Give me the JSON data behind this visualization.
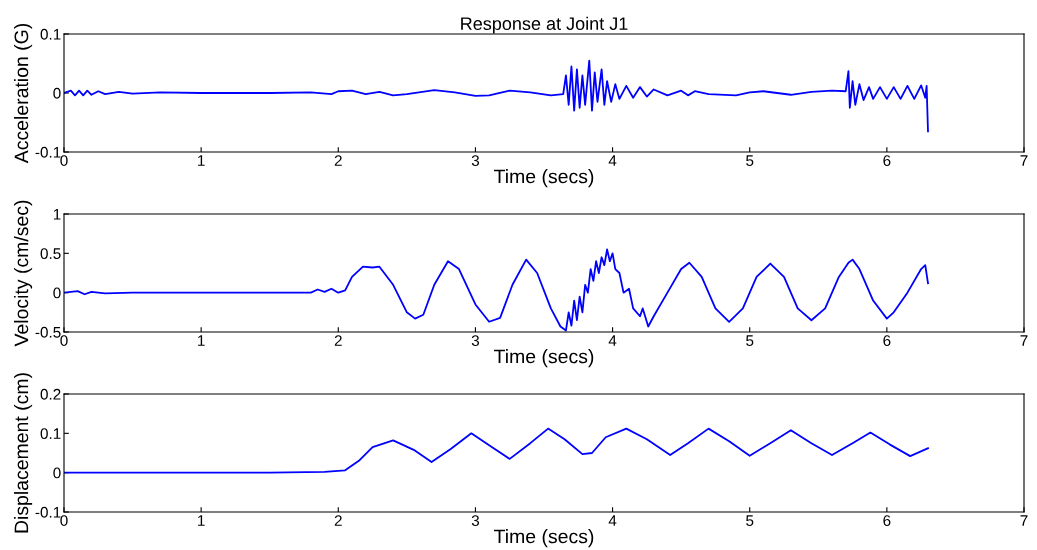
{
  "chart_data": [
    {
      "type": "line",
      "title": "Response at Joint J1",
      "xlabel": "Time (secs)",
      "ylabel": "Acceleration (G)",
      "xlim": [
        0,
        7
      ],
      "xticks": [
        0,
        1,
        2,
        3,
        4,
        5,
        6,
        7
      ],
      "ylim": [
        -0.1,
        0.1
      ],
      "yticks": [
        -0.1,
        0,
        0.1
      ],
      "grid": false,
      "legend": false,
      "series": [
        {
          "color": "#0000ff",
          "x": [
            0,
            0.05,
            0.08,
            0.11,
            0.14,
            0.17,
            0.2,
            0.25,
            0.3,
            0.4,
            0.5,
            0.7,
            1.0,
            1.5,
            1.8,
            1.95,
            2.0,
            2.1,
            2.2,
            2.3,
            2.4,
            2.5,
            2.7,
            2.85,
            3.0,
            3.1,
            3.25,
            3.4,
            3.55,
            3.64,
            3.66,
            3.68,
            3.7,
            3.72,
            3.74,
            3.76,
            3.78,
            3.8,
            3.83,
            3.85,
            3.87,
            3.89,
            3.92,
            3.94,
            3.96,
            3.99,
            4.02,
            4.05,
            4.1,
            4.15,
            4.2,
            4.25,
            4.3,
            4.4,
            4.5,
            4.55,
            4.6,
            4.7,
            4.9,
            5.0,
            5.1,
            5.3,
            5.45,
            5.6,
            5.7,
            5.72,
            5.73,
            5.75,
            5.77,
            5.8,
            5.83,
            5.87,
            5.9,
            5.95,
            6.0,
            6.05,
            6.1,
            6.15,
            6.2,
            6.25,
            6.28,
            6.29,
            6.3
          ],
          "values": [
            0,
            0.004,
            -0.004,
            0.004,
            -0.004,
            0.004,
            -0.003,
            0.003,
            -0.002,
            0.002,
            -0.001,
            0.001,
            0,
            0,
            0.001,
            -0.002,
            0.003,
            0.004,
            -0.002,
            0.002,
            -0.004,
            -0.002,
            0.005,
            0.001,
            -0.005,
            -0.004,
            0.004,
            0.001,
            -0.004,
            -0.002,
            0.03,
            -0.02,
            0.045,
            -0.03,
            0.04,
            -0.025,
            0.03,
            -0.02,
            0.055,
            -0.03,
            0.035,
            -0.015,
            0.04,
            -0.02,
            0.02,
            -0.015,
            0.015,
            -0.01,
            0.012,
            -0.008,
            0.01,
            -0.006,
            0.006,
            -0.004,
            0.004,
            -0.004,
            0.003,
            -0.002,
            -0.004,
            0.001,
            0.003,
            -0.003,
            0.002,
            0.004,
            0.003,
            0.037,
            -0.025,
            0.02,
            -0.02,
            0.015,
            -0.012,
            0.01,
            -0.01,
            0.01,
            -0.01,
            0.01,
            -0.01,
            0.012,
            -0.01,
            0.013,
            -0.008,
            0.012,
            -0.065
          ]
        }
      ]
    },
    {
      "type": "line",
      "xlabel": "Time (secs)",
      "ylabel": "Velocity (cm/sec)",
      "xlim": [
        0,
        7
      ],
      "xticks": [
        0,
        1,
        2,
        3,
        4,
        5,
        6,
        7
      ],
      "ylim": [
        -0.5,
        1
      ],
      "yticks": [
        -0.5,
        0,
        0.5,
        1
      ],
      "grid": false,
      "legend": false,
      "series": [
        {
          "color": "#0000ff",
          "x": [
            0,
            0.1,
            0.15,
            0.2,
            0.3,
            0.5,
            1.8,
            1.85,
            1.9,
            1.95,
            2.0,
            2.05,
            2.1,
            2.18,
            2.25,
            2.3,
            2.4,
            2.5,
            2.56,
            2.62,
            2.7,
            2.8,
            2.88,
            3.0,
            3.1,
            3.18,
            3.27,
            3.37,
            3.45,
            3.55,
            3.62,
            3.66,
            3.68,
            3.7,
            3.72,
            3.74,
            3.76,
            3.78,
            3.8,
            3.82,
            3.84,
            3.86,
            3.88,
            3.9,
            3.92,
            3.94,
            3.96,
            3.98,
            4.0,
            4.02,
            4.05,
            4.08,
            4.12,
            4.15,
            4.2,
            4.22,
            4.26,
            4.3,
            4.4,
            4.5,
            4.56,
            4.65,
            4.75,
            4.85,
            4.95,
            5.05,
            5.15,
            5.25,
            5.35,
            5.45,
            5.55,
            5.65,
            5.72,
            5.75,
            5.8,
            5.9,
            6.0,
            6.05,
            6.15,
            6.25,
            6.28,
            6.3
          ],
          "values": [
            0,
            0.02,
            -0.02,
            0.01,
            -0.01,
            0,
            0,
            0.04,
            0.01,
            0.05,
            0,
            0.03,
            0.2,
            0.33,
            0.32,
            0.33,
            0.1,
            -0.25,
            -0.33,
            -0.28,
            0.1,
            0.4,
            0.3,
            -0.15,
            -0.37,
            -0.32,
            0.1,
            0.42,
            0.25,
            -0.2,
            -0.43,
            -0.48,
            -0.25,
            -0.42,
            -0.1,
            -0.35,
            -0.05,
            -0.25,
            0.1,
            0,
            0.3,
            0.15,
            0.4,
            0.25,
            0.45,
            0.35,
            0.55,
            0.4,
            0.5,
            0.3,
            0.25,
            0,
            0.05,
            -0.2,
            -0.3,
            -0.2,
            -0.43,
            -0.3,
            0,
            0.3,
            0.38,
            0.2,
            -0.2,
            -0.37,
            -0.2,
            0.2,
            0.37,
            0.2,
            -0.2,
            -0.35,
            -0.2,
            0.2,
            0.38,
            0.42,
            0.3,
            -0.1,
            -0.33,
            -0.25,
            0,
            0.3,
            0.35,
            0.12
          ]
        }
      ]
    },
    {
      "type": "line",
      "xlabel": "Time (secs)",
      "ylabel": "Displacement (cm)",
      "xlim": [
        0,
        7
      ],
      "xticks": [
        0,
        1,
        2,
        3,
        4,
        5,
        6,
        7
      ],
      "ylim": [
        -0.1,
        0.2
      ],
      "yticks": [
        -0.1,
        0,
        0.1,
        0.2
      ],
      "grid": false,
      "legend": false,
      "series": [
        {
          "color": "#0000ff",
          "x": [
            0,
            0.5,
            1.0,
            1.5,
            1.9,
            2.05,
            2.15,
            2.25,
            2.4,
            2.55,
            2.68,
            2.82,
            2.97,
            3.1,
            3.25,
            3.4,
            3.53,
            3.65,
            3.78,
            3.85,
            3.95,
            4.1,
            4.25,
            4.42,
            4.55,
            4.7,
            4.85,
            5.0,
            5.15,
            5.3,
            5.45,
            5.6,
            5.75,
            5.88,
            6.02,
            6.17,
            6.3
          ],
          "values": [
            0,
            0,
            0,
            0,
            0.002,
            0.006,
            0.03,
            0.065,
            0.082,
            0.058,
            0.027,
            0.06,
            0.1,
            0.07,
            0.035,
            0.075,
            0.112,
            0.085,
            0.047,
            0.05,
            0.09,
            0.112,
            0.085,
            0.045,
            0.075,
            0.112,
            0.08,
            0.043,
            0.075,
            0.108,
            0.075,
            0.045,
            0.075,
            0.102,
            0.072,
            0.042,
            0.062
          ]
        }
      ]
    }
  ]
}
